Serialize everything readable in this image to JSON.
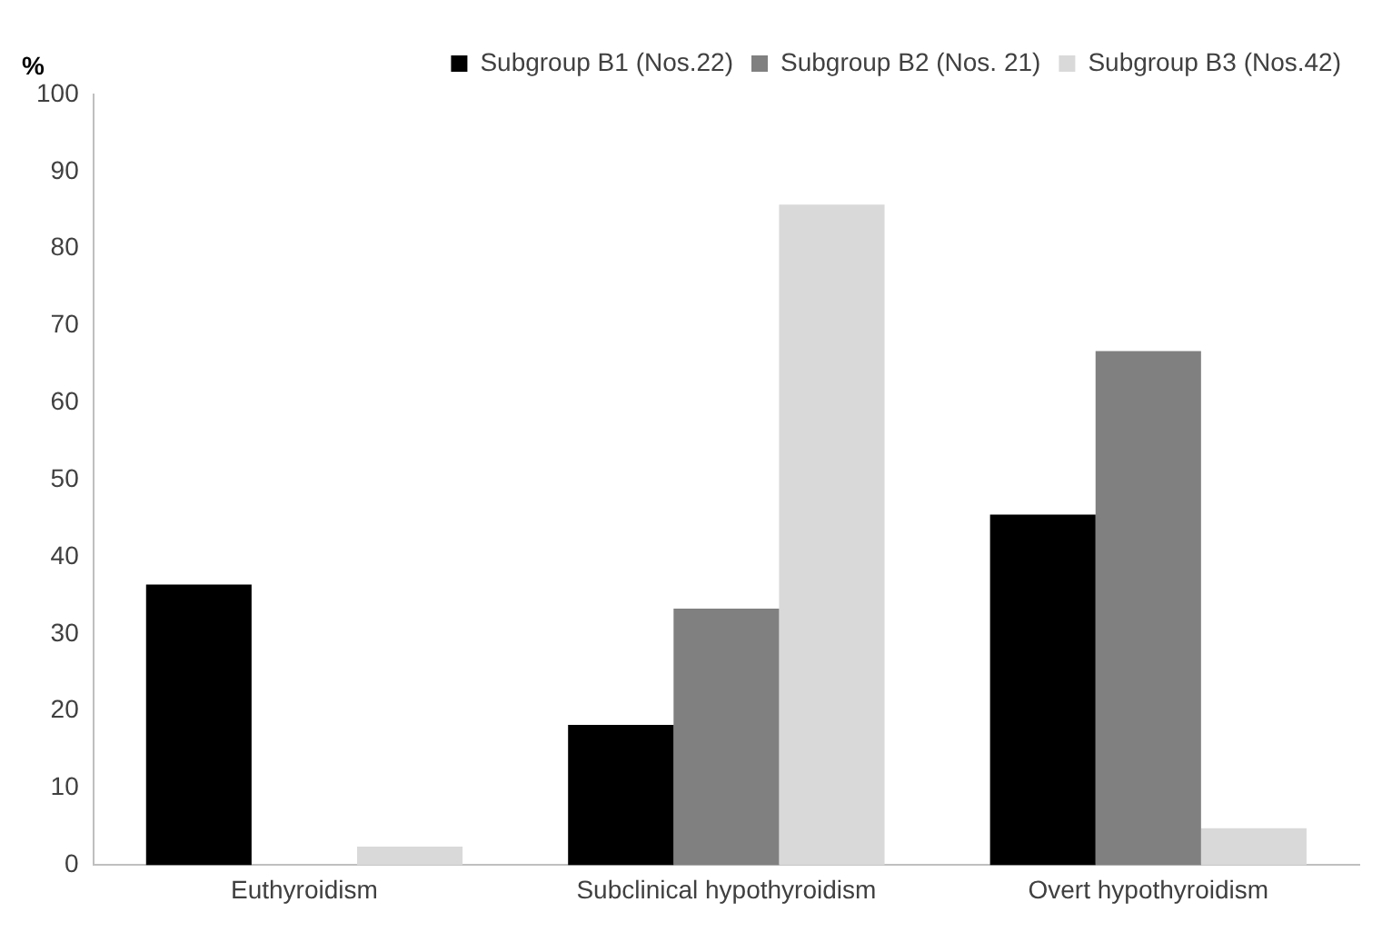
{
  "chart_data": {
    "type": "bar",
    "ylabel": "%",
    "categories": [
      "Euthyroidism",
      "Subclinical hypothyroidism",
      "Overt hypothyroidism"
    ],
    "series": [
      {
        "name": "Subgroup B1 (Nos.22)",
        "color": "#000000",
        "values": [
          36.4,
          18.2,
          45.5
        ]
      },
      {
        "name": "Subgroup B2 (Nos. 21)",
        "color": "#808080",
        "values": [
          0,
          33.3,
          66.7
        ]
      },
      {
        "name": "Subgroup B3 (Nos.42)",
        "color": "#d9d9d9",
        "values": [
          2.4,
          85.7,
          4.8
        ]
      }
    ],
    "ylim": [
      0,
      100
    ],
    "yticks": [
      0,
      10,
      20,
      30,
      40,
      50,
      60,
      70,
      80,
      90,
      100
    ],
    "grid": false,
    "legend": "top right"
  }
}
